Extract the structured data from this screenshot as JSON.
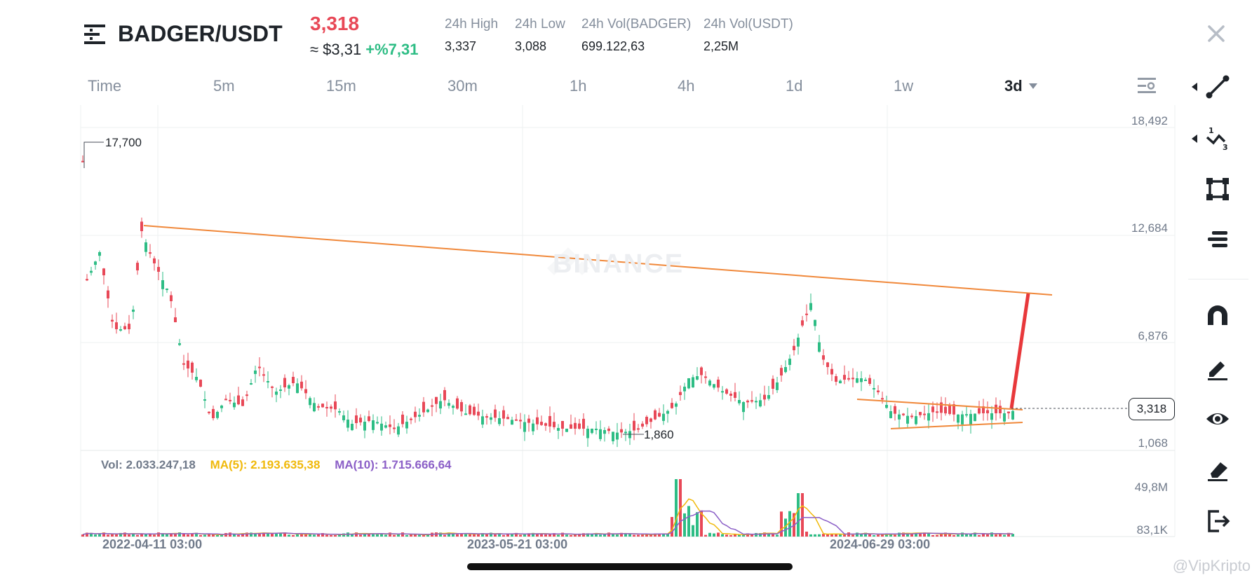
{
  "header": {
    "pair": "BADGER/USDT",
    "price": "3,318",
    "usd_price": "≈ $3,31",
    "change": "+%7,31",
    "stats": [
      {
        "label": "24h High",
        "value": "3,337"
      },
      {
        "label": "24h Low",
        "value": "3,088"
      },
      {
        "label": "24h Vol(BADGER)",
        "value": "699.122,63"
      },
      {
        "label": "24h Vol(USDT)",
        "value": "2,25M"
      }
    ]
  },
  "tabs": [
    "Time",
    "5m",
    "15m",
    "30m",
    "1h",
    "4h",
    "1d",
    "1w",
    "3d"
  ],
  "active_tab": "3d",
  "chart": {
    "watermark": "BINANCE",
    "current_price_label": "3,318",
    "high_marker": "17,700",
    "low_marker": "1,860",
    "price_axis": [
      "18,492",
      "12,684",
      "6,876",
      "1,068"
    ],
    "volume_axis": [
      "49,8M",
      "83,1K"
    ],
    "dates": [
      "2022-04-11 03:00",
      "2023-05-21 03:00",
      "2024-06-29 03:00"
    ],
    "vol_text": "Vol: 2.033.247,18",
    "ma5_text": "MA(5): 2.193.635,38",
    "ma10_text": "MA(10): 1.715.666,64"
  },
  "tools": [
    "trend-line-icon",
    "fibonacci-icon",
    "rectangle-icon",
    "text-lines-icon",
    "magnet-icon",
    "pencil-icon",
    "eye-icon",
    "eraser-icon",
    "exit-icon"
  ],
  "footer_watermark": "@VipKripto",
  "colors": {
    "up": "#2ebd85",
    "down": "#e84857",
    "trend": "#f0883a",
    "ma5": "#f0b90b",
    "ma10": "#8b5fc7",
    "projection": "#e8383b"
  }
}
